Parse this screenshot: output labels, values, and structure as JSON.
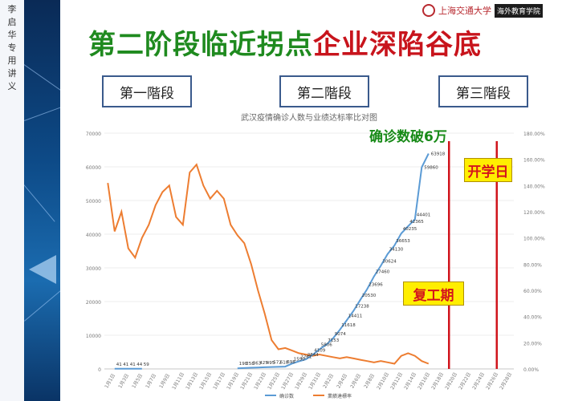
{
  "sidebar": {
    "vertical_note": "李启华专用讲义"
  },
  "header": {
    "logo_university": "上海交通大学",
    "logo_box": "海外教育学院",
    "title_green": "第二阶段临近拐点",
    "title_red": "企业深陷谷底"
  },
  "stages": [
    "第一階段",
    "第二階段",
    "第三階段"
  ],
  "annotations": {
    "green_label": "确诊数破6万",
    "school_start": "开学日",
    "work_resume": "复工期"
  },
  "colors": {
    "blue_series": "#5b9bd5",
    "orange_series": "#ed7d31",
    "red_line": "#d0141c",
    "title_green": "#1f8a1f",
    "title_red": "#c8141c"
  },
  "chart_data": {
    "type": "line",
    "title": "武汉疫情确诊人数与业绩达标率比对图",
    "categories": [
      "1月1日",
      "1月3日",
      "1月5日",
      "1月7日",
      "1月9日",
      "1月11日",
      "1月13日",
      "1月15日",
      "1月17日",
      "1月19日",
      "1月21日",
      "1月23日",
      "1月25日",
      "1月27日",
      "1月29日",
      "1月31日",
      "2月2日",
      "2月4日",
      "2月6日",
      "2月8日",
      "2月10日",
      "2月12日",
      "2月14日",
      "2月16日",
      "2月18日",
      "2月20日",
      "2月22日",
      "2月24日",
      "2月26日",
      "2月28日"
    ],
    "ylim_left": [
      0,
      70000
    ],
    "yticks_left": [
      "0",
      "10000",
      "20000",
      "30000",
      "40000",
      "50000",
      "60000",
      "70000"
    ],
    "ylim_right": [
      0,
      1.8
    ],
    "yticks_right": [
      "0.00%",
      "20.00%",
      "40.00%",
      "60.00%",
      "80.00%",
      "100.00%",
      "120.00%",
      "140.00%",
      "160.00%",
      "180.00%"
    ],
    "series": [
      {
        "name": "确诊数",
        "axis": "left",
        "x": [
          1.5,
          2.5,
          3.5,
          4.5,
          5.5,
          19.5,
          20.5,
          21.5,
          22.5,
          23.5,
          24.5,
          25.5,
          26.5,
          27.5,
          28.5,
          29.5,
          30.5,
          31.5,
          32.5,
          33.5,
          34.5,
          35.5,
          36.5,
          37.5,
          38.5,
          39.5,
          40.5,
          41.5,
          42.5,
          43.5,
          44.5,
          45.5
        ],
        "values": [
          41,
          41,
          41,
          44,
          59,
          198,
          258,
          363,
          425,
          495,
          572,
          618,
          698,
          1590,
          2261,
          2844,
          4109,
          5806,
          7153,
          9074,
          11618,
          14411,
          17238,
          20530,
          23696,
          27460,
          30624,
          34130,
          36653,
          40235,
          42365,
          44401
        ],
        "labels": [
          "41",
          "41",
          "41",
          "44",
          "59",
          "198",
          "258",
          "363",
          "425",
          "495",
          "572",
          "618",
          "698",
          "1590",
          "2261",
          "2844",
          "4109",
          "5806",
          "7153",
          "9074",
          "11618",
          "14411",
          "17238",
          "20530",
          "23696",
          "27460",
          "30624",
          "34130",
          "36653",
          "40235",
          "42365",
          "44401"
        ],
        "extra_x": [
          46.5,
          47.5
        ],
        "extra_values": [
          59860,
          63918
        ],
        "extra_labels": [
          "59860",
          "63918"
        ]
      },
      {
        "name": "業績達標率",
        "axis": "right",
        "x": [
          0.5,
          1.5,
          2.5,
          3.5,
          4.5,
          5.5,
          6.5,
          7.5,
          8.5,
          9.5,
          10.5,
          11.5,
          12.5,
          13.5,
          14.5,
          15.5,
          16.5,
          17.5,
          18.5,
          19.5,
          20.5,
          21.5,
          22.5,
          23.5,
          24.5,
          25.5,
          26.5,
          27.5,
          28.5,
          29.5,
          30.5,
          31.5,
          32.5,
          33.5,
          34.5,
          35.5,
          36.5,
          37.5,
          38.5,
          39.5,
          40.5,
          41.5,
          42.5,
          43.5,
          44.5,
          45.5,
          46.5,
          47.5
        ],
        "values": [
          1.42,
          1.05,
          1.2,
          0.92,
          0.85,
          1.0,
          1.1,
          1.25,
          1.35,
          1.4,
          1.16,
          1.1,
          1.5,
          1.56,
          1.4,
          1.3,
          1.36,
          1.3,
          1.1,
          1.02,
          0.96,
          0.8,
          0.6,
          0.42,
          0.22,
          0.15,
          0.16,
          0.14,
          0.12,
          0.11,
          0.1,
          0.11,
          0.1,
          0.09,
          0.08,
          0.09,
          0.08,
          0.07,
          0.06,
          0.05,
          0.06,
          0.05,
          0.04,
          0.1,
          0.12,
          0.1,
          0.06,
          0.04
        ]
      }
    ],
    "legend": [
      "确诊数",
      "業績達標率"
    ],
    "legend_position": "bottom",
    "vertical_markers": [
      {
        "label": "复工期",
        "x": 50.5
      },
      {
        "label": "开学日",
        "x": 57.5
      }
    ]
  }
}
